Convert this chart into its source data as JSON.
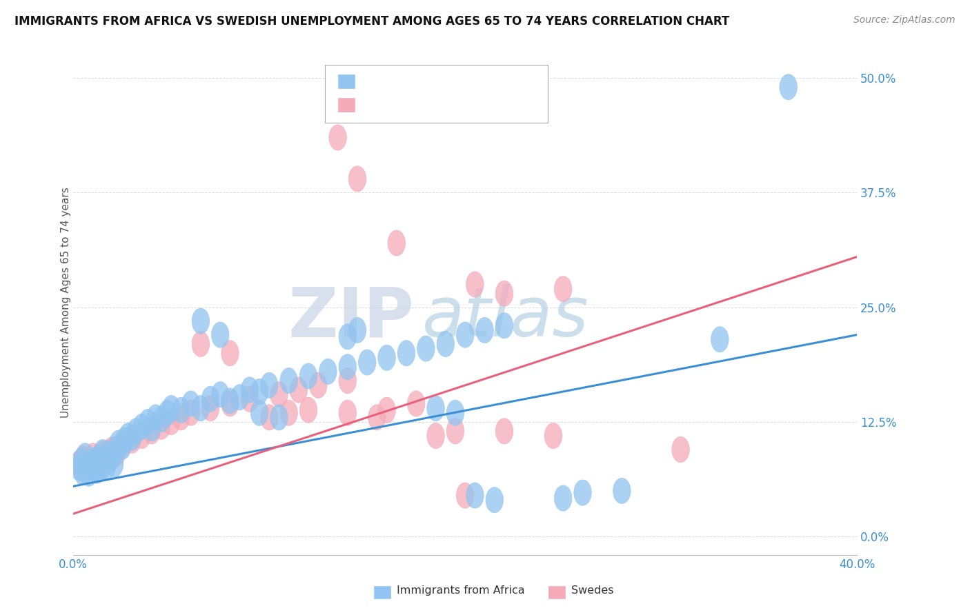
{
  "title": "IMMIGRANTS FROM AFRICA VS SWEDISH UNEMPLOYMENT AMONG AGES 65 TO 74 YEARS CORRELATION CHART",
  "source": "Source: ZipAtlas.com",
  "ylabel": "Unemployment Among Ages 65 to 74 years",
  "ytick_vals": [
    0.0,
    12.5,
    25.0,
    37.5,
    50.0
  ],
  "xlim": [
    0.0,
    40.0
  ],
  "ylim": [
    -2.0,
    53.0
  ],
  "blue_color": "#91c4f0",
  "pink_color": "#f4aab8",
  "blue_line_color": "#3a8fd4",
  "pink_line_color": "#e8607a",
  "r_n_color": "#3a8fd4",
  "title_color": "#111111",
  "watermark_zip": "ZIP",
  "watermark_atlas": "atlas",
  "legend_label_blue": "Immigrants from Africa",
  "legend_label_pink": "Swedes",
  "blue_scatter": [
    [
      0.3,
      7.5
    ],
    [
      0.4,
      8.2
    ],
    [
      0.5,
      7.0
    ],
    [
      0.6,
      8.8
    ],
    [
      0.7,
      7.8
    ],
    [
      0.8,
      6.9
    ],
    [
      0.9,
      8.0
    ],
    [
      1.0,
      7.5
    ],
    [
      1.1,
      8.3
    ],
    [
      1.2,
      7.2
    ],
    [
      1.3,
      8.6
    ],
    [
      1.4,
      7.4
    ],
    [
      1.5,
      9.2
    ],
    [
      1.6,
      8.0
    ],
    [
      1.7,
      7.6
    ],
    [
      1.8,
      9.0
    ],
    [
      1.9,
      8.5
    ],
    [
      2.0,
      8.8
    ],
    [
      2.1,
      7.9
    ],
    [
      2.2,
      9.5
    ],
    [
      2.3,
      10.2
    ],
    [
      2.5,
      9.8
    ],
    [
      2.6,
      10.5
    ],
    [
      2.8,
      11.0
    ],
    [
      3.0,
      10.8
    ],
    [
      3.2,
      11.5
    ],
    [
      3.5,
      12.0
    ],
    [
      3.8,
      12.5
    ],
    [
      4.0,
      11.8
    ],
    [
      4.2,
      13.0
    ],
    [
      4.5,
      12.8
    ],
    [
      4.8,
      13.5
    ],
    [
      5.0,
      14.0
    ],
    [
      5.5,
      13.8
    ],
    [
      6.0,
      14.5
    ],
    [
      6.5,
      14.0
    ],
    [
      7.0,
      15.0
    ],
    [
      7.5,
      15.5
    ],
    [
      8.0,
      14.8
    ],
    [
      8.5,
      15.2
    ],
    [
      9.0,
      16.0
    ],
    [
      9.5,
      15.8
    ],
    [
      10.0,
      16.5
    ],
    [
      11.0,
      17.0
    ],
    [
      12.0,
      17.5
    ],
    [
      13.0,
      18.0
    ],
    [
      14.0,
      18.5
    ],
    [
      15.0,
      19.0
    ],
    [
      16.0,
      19.5
    ],
    [
      17.0,
      20.0
    ],
    [
      18.0,
      20.5
    ],
    [
      19.0,
      21.0
    ],
    [
      20.0,
      22.0
    ],
    [
      21.0,
      22.5
    ],
    [
      22.0,
      23.0
    ],
    [
      6.5,
      23.5
    ],
    [
      7.5,
      22.0
    ],
    [
      9.5,
      13.5
    ],
    [
      10.5,
      13.0
    ],
    [
      14.0,
      21.8
    ],
    [
      14.5,
      22.5
    ],
    [
      18.5,
      14.0
    ],
    [
      19.5,
      13.5
    ],
    [
      20.5,
      4.5
    ],
    [
      21.5,
      4.0
    ],
    [
      25.0,
      4.2
    ],
    [
      26.0,
      4.8
    ],
    [
      28.0,
      5.0
    ],
    [
      33.0,
      21.5
    ],
    [
      36.5,
      49.0
    ]
  ],
  "pink_scatter": [
    [
      0.3,
      8.0
    ],
    [
      0.4,
      7.5
    ],
    [
      0.5,
      8.5
    ],
    [
      0.6,
      7.8
    ],
    [
      0.8,
      8.2
    ],
    [
      0.9,
      7.6
    ],
    [
      1.0,
      8.8
    ],
    [
      1.1,
      7.9
    ],
    [
      1.2,
      8.3
    ],
    [
      1.4,
      8.0
    ],
    [
      1.5,
      9.0
    ],
    [
      1.7,
      8.5
    ],
    [
      1.8,
      9.2
    ],
    [
      2.0,
      9.5
    ],
    [
      2.2,
      9.0
    ],
    [
      2.5,
      10.0
    ],
    [
      3.0,
      10.5
    ],
    [
      3.5,
      11.0
    ],
    [
      4.0,
      11.5
    ],
    [
      4.5,
      12.0
    ],
    [
      5.0,
      12.5
    ],
    [
      5.5,
      13.0
    ],
    [
      6.0,
      13.5
    ],
    [
      7.0,
      14.0
    ],
    [
      8.0,
      14.5
    ],
    [
      9.0,
      15.0
    ],
    [
      10.5,
      15.5
    ],
    [
      11.5,
      16.0
    ],
    [
      12.5,
      16.5
    ],
    [
      14.0,
      17.0
    ],
    [
      6.5,
      21.0
    ],
    [
      8.0,
      20.0
    ],
    [
      10.0,
      13.0
    ],
    [
      11.0,
      13.5
    ],
    [
      12.0,
      13.8
    ],
    [
      14.0,
      13.5
    ],
    [
      15.5,
      13.0
    ],
    [
      16.0,
      13.8
    ],
    [
      17.5,
      14.5
    ],
    [
      18.5,
      11.0
    ],
    [
      19.5,
      11.5
    ],
    [
      20.0,
      4.5
    ],
    [
      22.0,
      11.5
    ],
    [
      24.5,
      11.0
    ],
    [
      31.0,
      9.5
    ],
    [
      13.5,
      43.5
    ],
    [
      14.5,
      39.0
    ],
    [
      16.5,
      32.0
    ],
    [
      20.5,
      27.5
    ],
    [
      22.0,
      26.5
    ],
    [
      25.0,
      27.0
    ]
  ],
  "blue_line": {
    "x0": 0.0,
    "y0": 5.5,
    "x1": 40.0,
    "y1": 22.0
  },
  "pink_line": {
    "x0": 0.0,
    "y0": 2.5,
    "x1": 40.0,
    "y1": 30.5
  },
  "background_color": "#ffffff",
  "grid_color": "#cccccc"
}
